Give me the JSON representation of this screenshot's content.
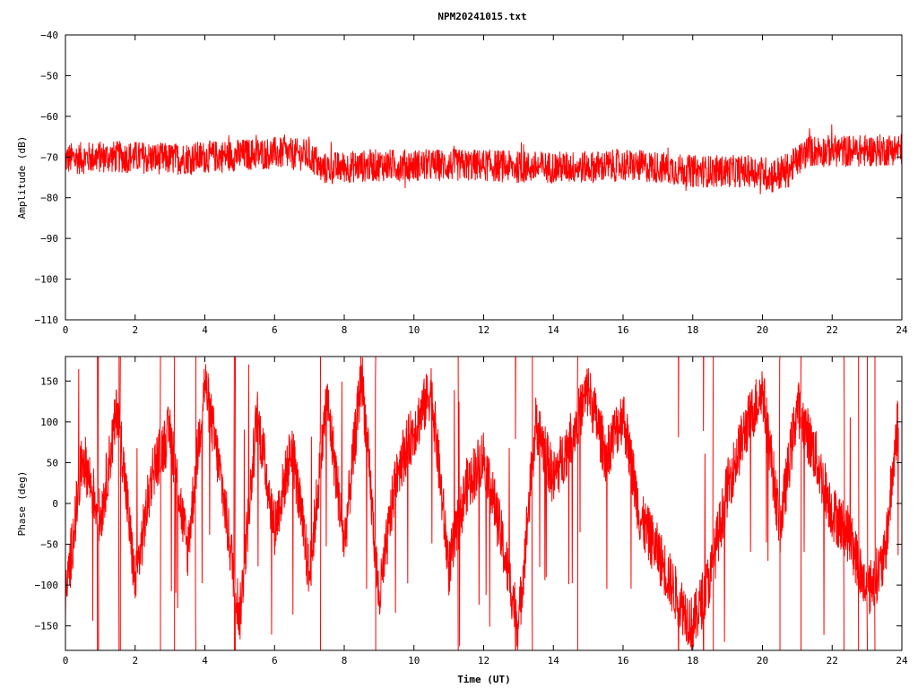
{
  "title": "NPM20241015.txt",
  "colors": {
    "series": "#ff0000",
    "axes": "#000000",
    "grid": "#000000"
  },
  "chart_data": [
    {
      "type": "line",
      "ylabel": "Amplitude (dB)",
      "xlabel": "",
      "xlim": [
        0,
        24
      ],
      "ylim": [
        -110,
        -40
      ],
      "xticks": [
        "0",
        "2",
        "4",
        "6",
        "8",
        "10",
        "12",
        "14",
        "16",
        "18",
        "20",
        "22",
        "24"
      ],
      "yticks": [
        "-40",
        "-50",
        "-60",
        "-70",
        "-80",
        "-90",
        "-100",
        "-110"
      ],
      "grid": false,
      "series_color": "#ff0000",
      "series": [
        {
          "x": [
            0,
            1,
            2,
            3,
            4,
            5,
            6,
            6.9,
            7.2,
            7.3,
            8,
            9,
            10,
            11,
            12,
            13,
            14,
            15,
            16,
            17,
            18,
            19,
            19.8,
            20.3,
            20.7,
            21,
            21.3,
            22,
            23,
            24
          ],
          "mean": [
            -70.5,
            -70,
            -70,
            -70.5,
            -70,
            -69.5,
            -69,
            -69.5,
            -71,
            -73,
            -72.5,
            -72,
            -72,
            -72,
            -72,
            -72.5,
            -72.5,
            -72.5,
            -72,
            -72.5,
            -73.5,
            -73.5,
            -73.5,
            -74.5,
            -73.5,
            -71,
            -68.5,
            -68.5,
            -68.5,
            -68
          ],
          "spread": [
            4,
            4,
            4,
            4,
            4,
            4,
            4,
            4,
            4,
            4,
            4,
            4,
            4,
            4,
            4,
            4,
            4,
            4,
            4,
            4,
            4,
            4,
            4,
            4.5,
            4.5,
            4,
            4,
            4,
            4,
            4
          ],
          "min": -81,
          "max": -62
        }
      ]
    },
    {
      "type": "line",
      "ylabel": "Phase (deg)",
      "xlabel": "Time (UT)",
      "xlim": [
        0,
        24
      ],
      "ylim": [
        -180,
        180
      ],
      "xticks": [
        "0",
        "2",
        "4",
        "6",
        "8",
        "10",
        "12",
        "14",
        "16",
        "18",
        "20",
        "22",
        "24"
      ],
      "yticks": [
        "150",
        "100",
        "50",
        "0",
        "-50",
        "-100",
        "-150"
      ],
      "grid": false,
      "series_color": "#ff0000",
      "series": [
        {
          "x": [
            0,
            0.5,
            1,
            1.5,
            2,
            2.5,
            3,
            3.5,
            4,
            4.5,
            5,
            5.5,
            6,
            6.5,
            7,
            7.5,
            8,
            8.5,
            9,
            9.5,
            10,
            10.5,
            11,
            11.5,
            12,
            12.5,
            13,
            13.5,
            14,
            14.5,
            15,
            15.5,
            16,
            16.5,
            17,
            17.5,
            18,
            18.5,
            19,
            19.5,
            20,
            20.5,
            21,
            21.5,
            22,
            22.5,
            23,
            23.5,
            23.9
          ],
          "y": [
            -120,
            60,
            -20,
            120,
            -100,
            40,
            90,
            -60,
            150,
            20,
            -140,
            110,
            -30,
            70,
            -90,
            130,
            -50,
            160,
            -120,
            40,
            90,
            140,
            -80,
            20,
            60,
            -40,
            -150,
            100,
            30,
            80,
            140,
            60,
            110,
            -20,
            -60,
            -110,
            -150,
            -90,
            20,
            90,
            140,
            -30,
            120,
            60,
            -10,
            -40,
            -110,
            -70,
            110
          ],
          "wrap": "±180"
        }
      ]
    }
  ]
}
